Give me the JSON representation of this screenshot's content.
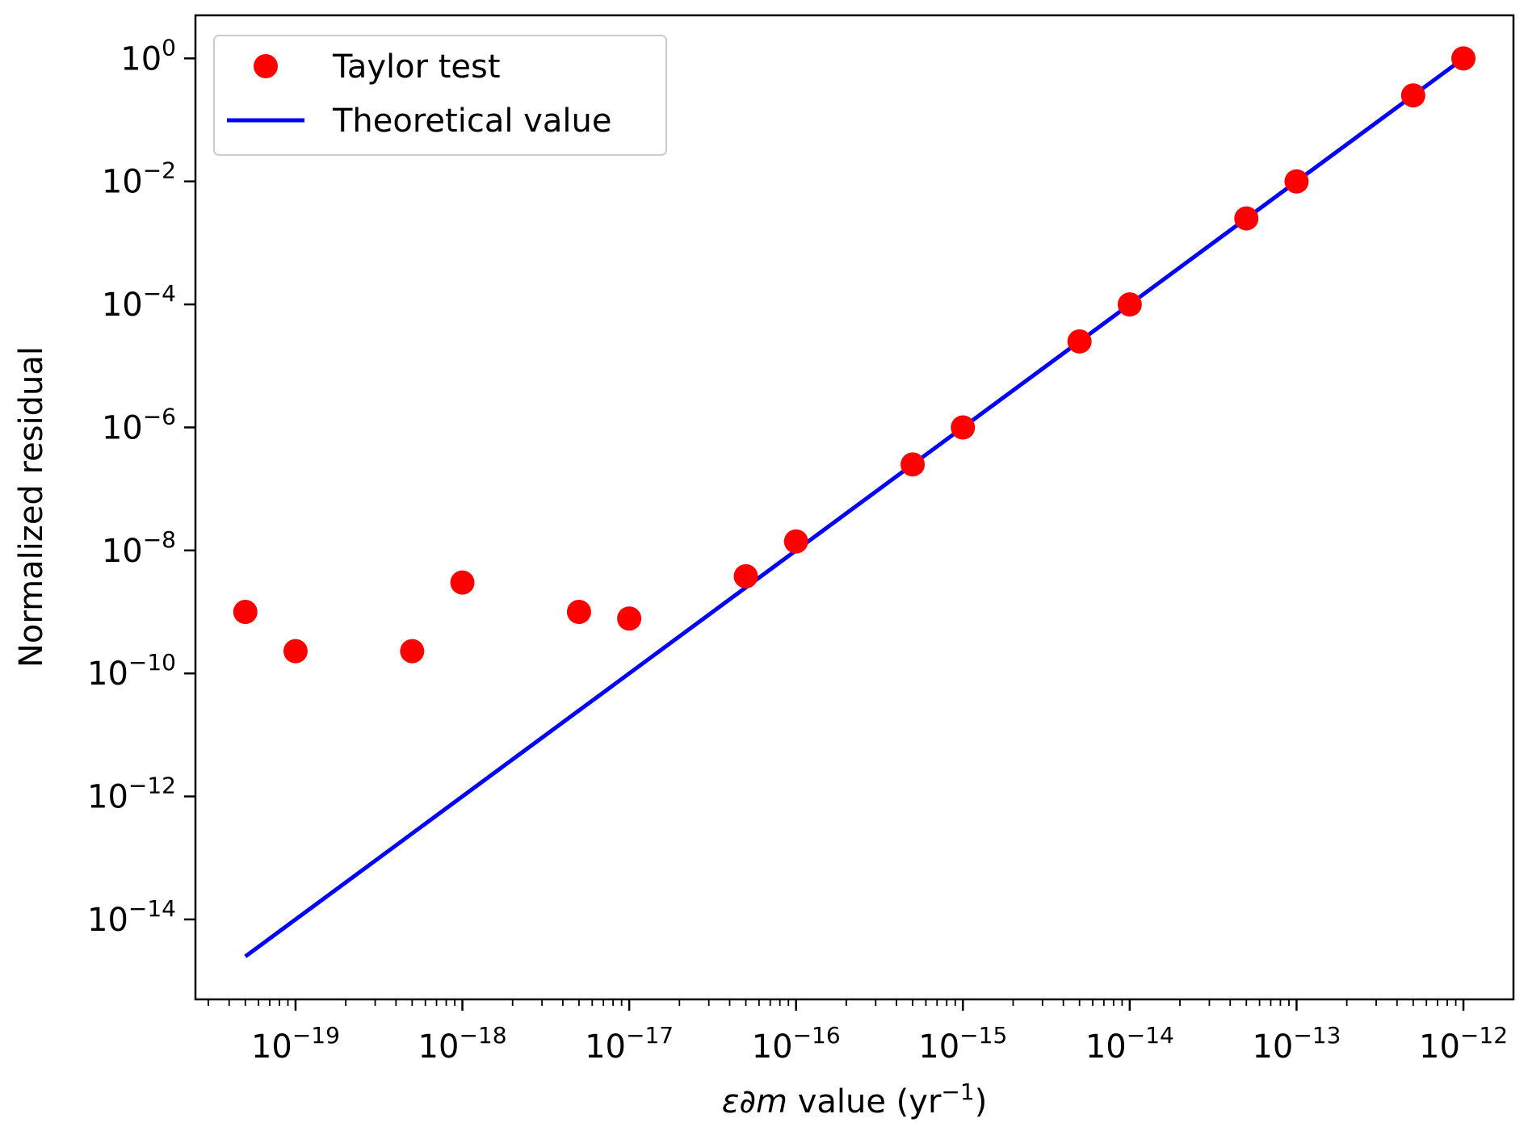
{
  "chart_data": {
    "type": "scatter",
    "title": "",
    "xlabel": "ε∂m value (yr⁻¹)",
    "xlabel_parts": {
      "symbol": "ε∂m",
      "text": " value (yr",
      "sup": "−1",
      "close": ")"
    },
    "ylabel": "Normalized residual",
    "xscale": "log",
    "yscale": "log",
    "xlim_exp": [
      -19.6,
      -11.7
    ],
    "ylim_exp": [
      -15.3,
      0.7
    ],
    "x_ticks": [
      {
        "base": "10",
        "exp": "−19",
        "value": -19
      },
      {
        "base": "10",
        "exp": "−18",
        "value": -18
      },
      {
        "base": "10",
        "exp": "−17",
        "value": -17
      },
      {
        "base": "10",
        "exp": "−16",
        "value": -16
      },
      {
        "base": "10",
        "exp": "−15",
        "value": -15
      },
      {
        "base": "10",
        "exp": "−14",
        "value": -14
      },
      {
        "base": "10",
        "exp": "−13",
        "value": -13
      },
      {
        "base": "10",
        "exp": "−12",
        "value": -12
      }
    ],
    "y_ticks": [
      {
        "base": "10",
        "exp": "0",
        "value": 0
      },
      {
        "base": "10",
        "exp": "−2",
        "value": -2
      },
      {
        "base": "10",
        "exp": "−4",
        "value": -4
      },
      {
        "base": "10",
        "exp": "−6",
        "value": -6
      },
      {
        "base": "10",
        "exp": "−8",
        "value": -8
      },
      {
        "base": "10",
        "exp": "−10",
        "value": -10
      },
      {
        "base": "10",
        "exp": "−12",
        "value": -12
      },
      {
        "base": "10",
        "exp": "−14",
        "value": -14
      }
    ],
    "series": [
      {
        "name": "Taylor test",
        "type": "scatter",
        "color": "#ff0000",
        "x": [
          5e-20,
          1e-19,
          5e-19,
          1e-18,
          5e-18,
          1e-17,
          5e-17,
          1e-16,
          5e-16,
          1e-15,
          5e-15,
          1e-14,
          5e-14,
          1e-13,
          5e-13,
          1e-12
        ],
        "y": [
          1e-09,
          2.3e-10,
          2.3e-10,
          3e-09,
          1e-09,
          7.8e-10,
          3.8e-09,
          1.4e-08,
          2.5e-07,
          1e-06,
          2.5e-05,
          0.0001,
          0.0025,
          0.01,
          0.25,
          1.0
        ]
      },
      {
        "name": "Theoretical value",
        "type": "line",
        "color": "#0000ff",
        "x": [
          5e-20,
          1e-12
        ],
        "y": [
          2.5e-15,
          1.0
        ]
      }
    ],
    "legend": {
      "position": "upper-left",
      "entries": [
        "Taylor test",
        "Theoretical value"
      ]
    },
    "grid": false
  }
}
